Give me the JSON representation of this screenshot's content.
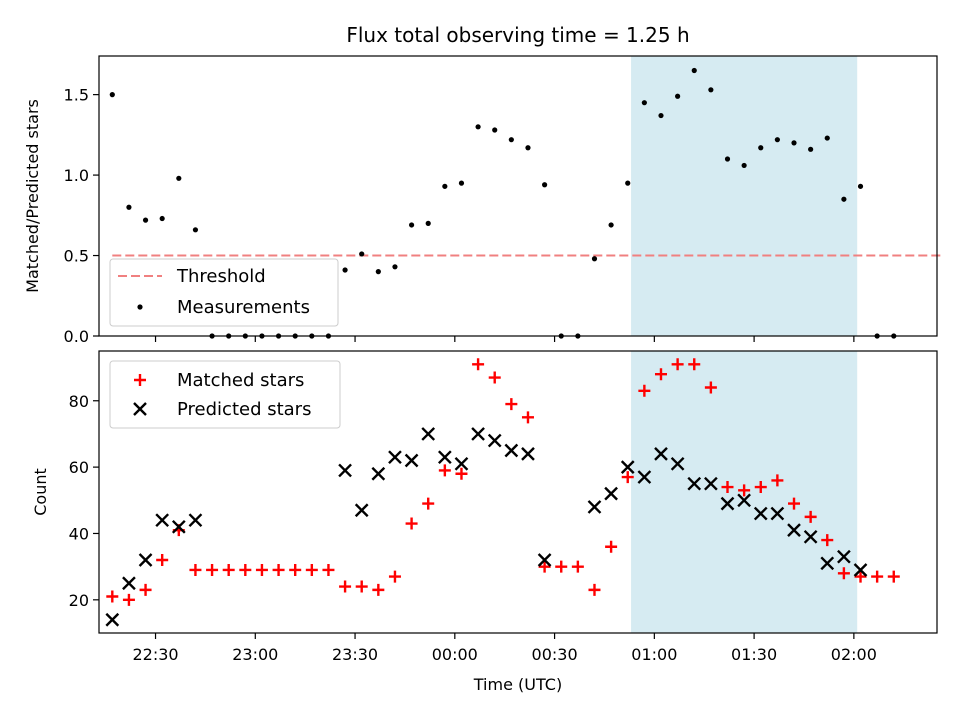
{
  "chart_data": [
    {
      "type": "scatter",
      "title": "Flux total observing time = 1.25 h",
      "ylabel": "Matched/Predicted stars",
      "xlabel": "",
      "ylim": [
        0,
        1.74
      ],
      "yticks": [
        0.0,
        0.5,
        1.0,
        1.5
      ],
      "ytick_labels": [
        "0.0",
        "0.5",
        "1.0",
        "1.5"
      ],
      "xticks": [
        "22:30",
        "23:00",
        "23:30",
        "00:00",
        "00:30",
        "01:00",
        "01:30",
        "02:00"
      ],
      "tick_labels_visible": false,
      "highlight_span": {
        "start": "00:53",
        "end": "02:01",
        "color": "#add8e6"
      },
      "legend_placement": "lower-left",
      "series": [
        {
          "name": "Threshold",
          "kind": "line",
          "style": "dashed",
          "color": "#f08080",
          "x": [
            "22:17",
            "02:27"
          ],
          "y": [
            0.5,
            0.5
          ]
        },
        {
          "name": "Measurements",
          "kind": "scatter",
          "color": "#000000",
          "x": [
            "22:17",
            "22:22",
            "22:27",
            "22:32",
            "22:37",
            "22:42",
            "22:47",
            "22:52",
            "22:57",
            "23:02",
            "23:07",
            "23:12",
            "23:17",
            "23:22",
            "23:27",
            "23:32",
            "23:37",
            "23:42",
            "23:47",
            "23:52",
            "23:57",
            "00:02",
            "00:07",
            "00:12",
            "00:17",
            "00:22",
            "00:27",
            "00:32",
            "00:37",
            "00:42",
            "00:47",
            "00:52",
            "00:57",
            "01:02",
            "01:07",
            "01:12",
            "01:17",
            "01:22",
            "01:27",
            "01:32",
            "01:37",
            "01:42",
            "01:47",
            "01:52",
            "01:57",
            "02:02",
            "02:07",
            "02:12"
          ],
          "y": [
            1.5,
            0.8,
            0.72,
            0.73,
            0.98,
            0.66,
            0.0,
            0.0,
            0.0,
            0.0,
            0.0,
            0.0,
            0.0,
            0.0,
            0.41,
            0.51,
            0.4,
            0.43,
            0.69,
            0.7,
            0.93,
            0.95,
            1.3,
            1.28,
            1.22,
            1.17,
            0.94,
            0.0,
            0.0,
            0.48,
            0.69,
            0.95,
            1.45,
            1.37,
            1.49,
            1.65,
            1.53,
            1.1,
            1.06,
            1.17,
            1.22,
            1.2,
            1.16,
            1.23,
            0.85,
            0.93,
            0.0,
            0.0
          ]
        }
      ]
    },
    {
      "type": "scatter",
      "title": "",
      "ylabel": "Count",
      "xlabel": "Time (UTC)",
      "ylim": [
        10,
        95
      ],
      "yticks": [
        20,
        40,
        60,
        80
      ],
      "ytick_labels": [
        "20",
        "40",
        "60",
        "80"
      ],
      "xticks": [
        "22:30",
        "23:00",
        "23:30",
        "00:00",
        "00:30",
        "01:00",
        "01:30",
        "02:00"
      ],
      "xlim": [
        "22:13",
        "02:25"
      ],
      "highlight_span": {
        "start": "00:53",
        "end": "02:01",
        "color": "#add8e6"
      },
      "legend_placement": "upper-left",
      "series": [
        {
          "name": "Matched stars",
          "marker": "plus",
          "color": "#ff0000",
          "x": [
            "22:17",
            "22:22",
            "22:27",
            "22:32",
            "22:37",
            "22:42",
            "22:47",
            "22:52",
            "22:57",
            "23:02",
            "23:07",
            "23:12",
            "23:17",
            "23:22",
            "23:27",
            "23:32",
            "23:37",
            "23:42",
            "23:47",
            "23:52",
            "23:57",
            "00:02",
            "00:07",
            "00:12",
            "00:17",
            "00:22",
            "00:27",
            "00:32",
            "00:37",
            "00:42",
            "00:47",
            "00:52",
            "00:57",
            "01:02",
            "01:07",
            "01:12",
            "01:17",
            "01:22",
            "01:27",
            "01:32",
            "01:37",
            "01:42",
            "01:47",
            "01:52",
            "01:57",
            "02:02",
            "02:07",
            "02:12"
          ],
          "y": [
            21,
            20,
            23,
            32,
            41,
            29,
            29,
            29,
            29,
            29,
            29,
            29,
            29,
            29,
            24,
            24,
            23,
            27,
            43,
            49,
            59,
            58,
            91,
            87,
            79,
            75,
            30,
            30,
            30,
            23,
            36,
            57,
            83,
            88,
            91,
            91,
            84,
            54,
            53,
            54,
            56,
            49,
            45,
            38,
            28,
            27,
            27,
            27
          ]
        },
        {
          "name": "Predicted stars",
          "marker": "x",
          "color": "#000000",
          "x": [
            "22:17",
            "22:22",
            "22:27",
            "22:32",
            "22:37",
            "22:42",
            "23:27",
            "23:32",
            "23:37",
            "23:42",
            "23:47",
            "23:52",
            "23:57",
            "00:02",
            "00:07",
            "00:12",
            "00:17",
            "00:22",
            "00:27",
            "00:42",
            "00:47",
            "00:52",
            "00:57",
            "01:02",
            "01:07",
            "01:12",
            "01:17",
            "01:22",
            "01:27",
            "01:32",
            "01:37",
            "01:42",
            "01:47",
            "01:52",
            "01:57",
            "02:02"
          ],
          "y": [
            14,
            25,
            32,
            44,
            42,
            44,
            59,
            47,
            58,
            63,
            62,
            70,
            63,
            61,
            70,
            68,
            65,
            64,
            32,
            48,
            52,
            60,
            57,
            64,
            61,
            55,
            55,
            49,
            50,
            46,
            46,
            41,
            39,
            31,
            33,
            29
          ]
        }
      ]
    }
  ]
}
